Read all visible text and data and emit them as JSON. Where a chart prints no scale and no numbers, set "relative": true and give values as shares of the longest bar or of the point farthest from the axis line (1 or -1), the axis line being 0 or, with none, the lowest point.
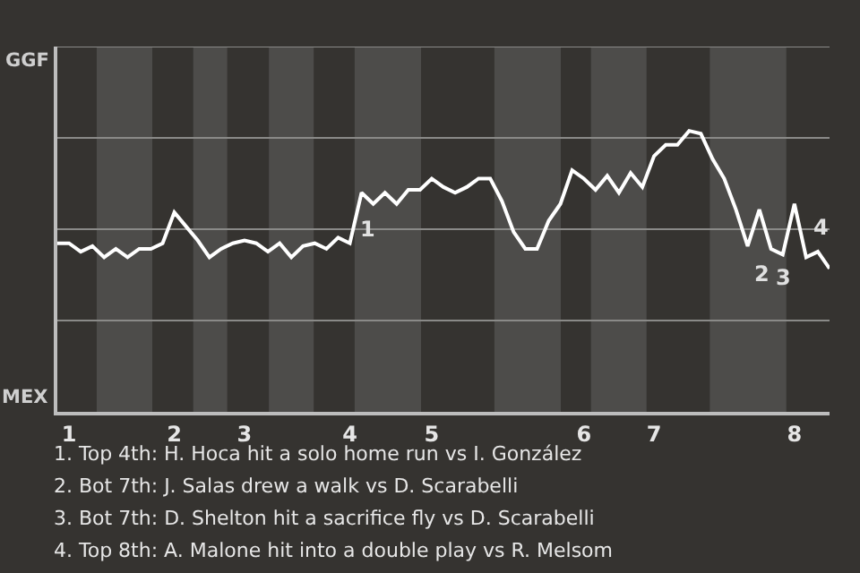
{
  "chart_data": {
    "type": "line",
    "relative": true,
    "categories": [
      null,
      "1",
      null,
      null,
      null,
      null,
      null,
      null,
      null,
      null,
      "2",
      null,
      null,
      null,
      null,
      null,
      "3",
      null,
      null,
      null,
      null,
      null,
      null,
      null,
      null,
      "4",
      null,
      null,
      null,
      null,
      null,
      null,
      "5",
      null,
      null,
      null,
      null,
      null,
      null,
      null,
      null,
      null,
      null,
      null,
      null,
      "6",
      null,
      null,
      null,
      null,
      null,
      "7",
      null,
      null,
      null,
      null,
      null,
      null,
      null,
      null,
      null,
      null,
      null,
      "8",
      null,
      null,
      null
    ],
    "series": [
      {
        "color": "#ffffff",
        "values": [
          0.6,
          0.6,
          0.57,
          0.59,
          0.55,
          0.58,
          0.55,
          0.58,
          0.58,
          0.6,
          0.71,
          0.66,
          0.61,
          0.55,
          0.58,
          0.6,
          0.61,
          0.6,
          0.57,
          0.6,
          0.55,
          0.59,
          0.6,
          0.58,
          0.62,
          0.6,
          0.78,
          0.74,
          0.78,
          0.74,
          0.79,
          0.79,
          0.83,
          0.8,
          0.78,
          0.8,
          0.83,
          0.83,
          0.75,
          0.64,
          0.58,
          0.58,
          0.68,
          0.74,
          0.86,
          0.83,
          0.79,
          0.84,
          0.78,
          0.85,
          0.8,
          0.91,
          0.95,
          0.95,
          1,
          0.99,
          0.9,
          0.83,
          0.72,
          0.59,
          0.72,
          0.58,
          0.56,
          0.74,
          0.55,
          0.57,
          0.51
        ]
      }
    ],
    "grid": "y",
    "legend": false,
    "marker": "none",
    "line_style": "solid",
    "annotations": [
      "GGF",
      "MEX",
      "1",
      "2",
      "3",
      "4",
      "1. Top 4th: H. Hoca hit a solo home run vs I. González",
      "2. Bot 7th: J. Salas drew a walk vs D. Scarabelli",
      "3. Bot 7th: D. Shelton hit a sacrifice fly vs D. Scarabelli",
      "4. Top 8th: A. Malone hit into a double play vs R. Melsom"
    ]
  }
}
